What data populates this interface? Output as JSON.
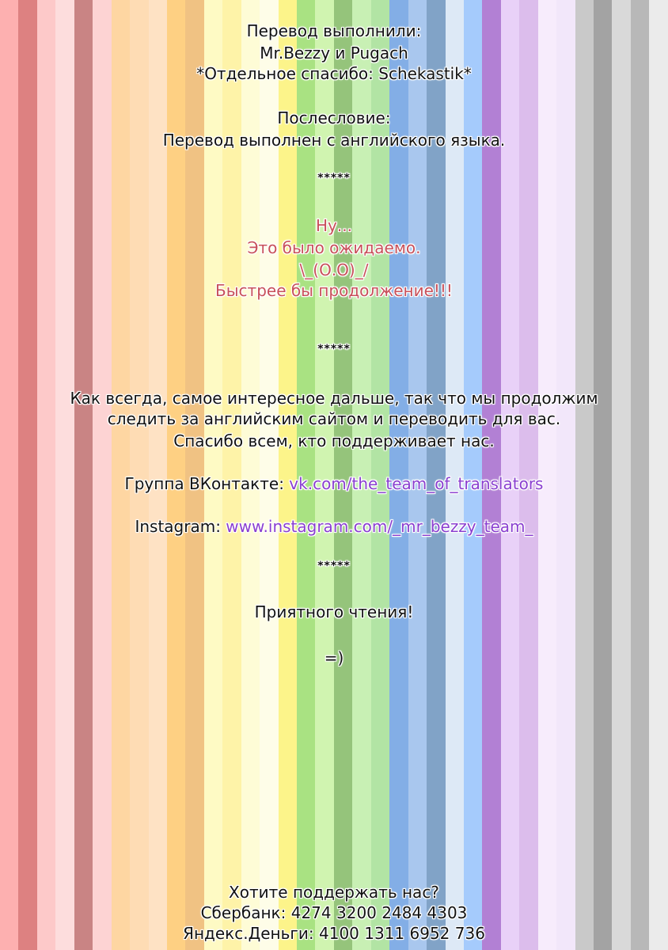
{
  "stripe_colors": [
    "#fdb0b0",
    "#dd8181",
    "#fdc9c9",
    "#fddddd",
    "#c98484",
    "#fdd3d3",
    "#fed6a2",
    "#fedcb4",
    "#fee2c4",
    "#fed083",
    "#f0c283",
    "#fefac4",
    "#fef3a8",
    "#fefcd6",
    "#fefde8",
    "#fcf48a",
    "#a9e282",
    "#d0f4b0",
    "#95c47b",
    "#c8f0b4",
    "#b2e4a4",
    "#83aee6",
    "#a9c7ee",
    "#81a3c7",
    "#dde9f6",
    "#a5cbfc",
    "#b280d4",
    "#e9d1f8",
    "#dcbdec",
    "#f7ecfc",
    "#f2e7fa",
    "#c9c9c9",
    "#a3a3a3",
    "#d9d9d9",
    "#b8b8b8",
    "#ebebeb"
  ],
  "credits": {
    "heading": "Перевод выполнили:",
    "names": "Mr.Bezzy и Pugach",
    "thanks": "*Отдельное спасибо: Schekastik*"
  },
  "afterword": {
    "heading": "Послесловие:",
    "text": "Перевод выполнен с английского языка."
  },
  "separators": [
    "*****",
    "*****",
    "*****"
  ],
  "comment": {
    "line1": "Ну...",
    "line2": "Это было ожидаемо.",
    "line3": "\\_(О.О)_/",
    "line4": "Быстрее бы продолжение!!!"
  },
  "message": {
    "line1": "Как всегда, самое интересное дальше, так что мы продолжим",
    "line2": "следить за английским сайтом и переводить для вас.",
    "line3": "Спасибо всем, кто поддерживает нас."
  },
  "links": {
    "vk_label": "Группа ВКонтакте: ",
    "vk_url": "vk.com/the_team_of_translators",
    "ig_label": "Instagram: ",
    "ig_url": "www.instagram.com/_mr_bezzy_team_"
  },
  "closing": {
    "wish": "Приятного чтения!",
    "smile": "=)"
  },
  "support": {
    "heading": "Хотите поддержать нас?",
    "sber": "Сбербанк: 4274 3200 2484 4303",
    "yandex": "Яндекс.Деньги: 4100 1311 6952 736"
  }
}
